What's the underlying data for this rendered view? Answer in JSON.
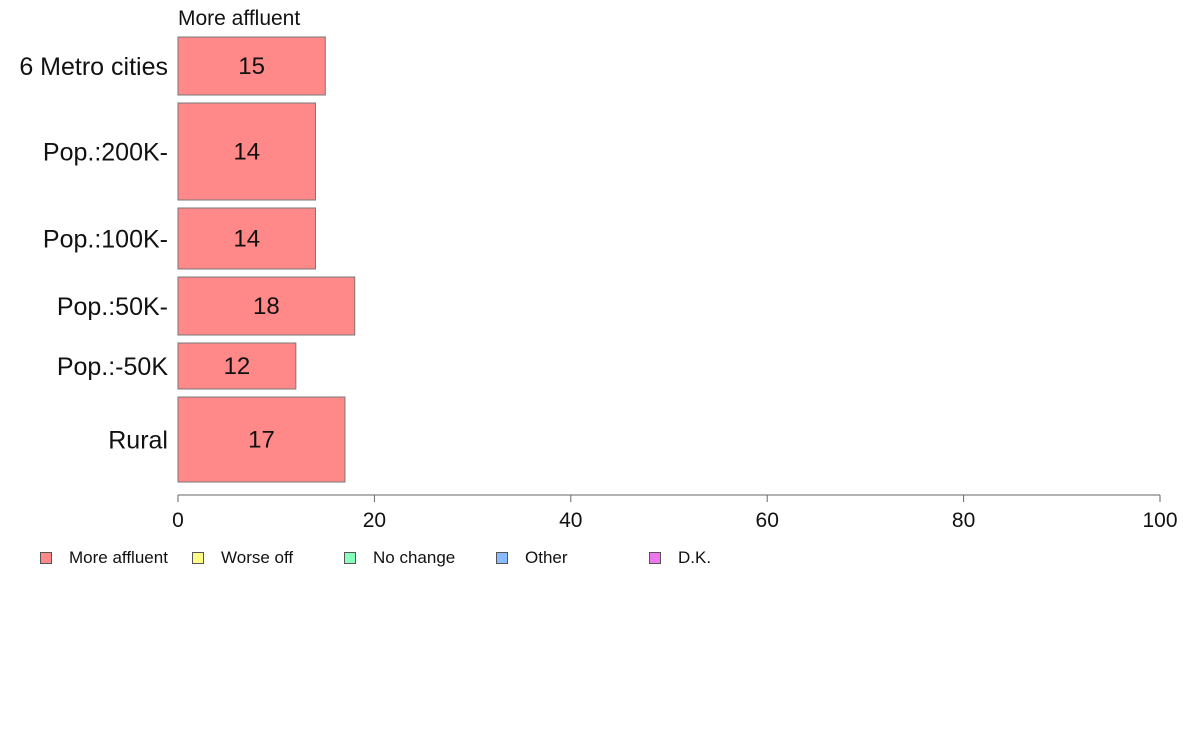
{
  "chart_data": {
    "type": "bar",
    "orientation": "horizontal",
    "stacked": true,
    "panel_title": "More affluent",
    "categories": [
      "6 Metro cities",
      "Pop.:200K-",
      "Pop.:100K-",
      "Pop.:50K-",
      "Pop.:-50K",
      "Rural"
    ],
    "series": [
      {
        "name": "More affluent",
        "color": "#ff8888",
        "values": [
          15,
          14,
          14,
          18,
          12,
          17
        ]
      }
    ],
    "xlim": [
      0,
      100
    ],
    "xticks": [
      0,
      20,
      40,
      60,
      80,
      100
    ],
    "xlabel": "",
    "ylabel": "",
    "grid": false,
    "legend_placement": "bottom",
    "legend": [
      {
        "label": "More affluent",
        "color": "#ff8888"
      },
      {
        "label": "Worse off",
        "color": "#ffff88"
      },
      {
        "label": "No change",
        "color": "#88ffbb"
      },
      {
        "label": "Other",
        "color": "#88bbff"
      },
      {
        "label": "D.K.",
        "color": "#ee77ee"
      }
    ]
  }
}
